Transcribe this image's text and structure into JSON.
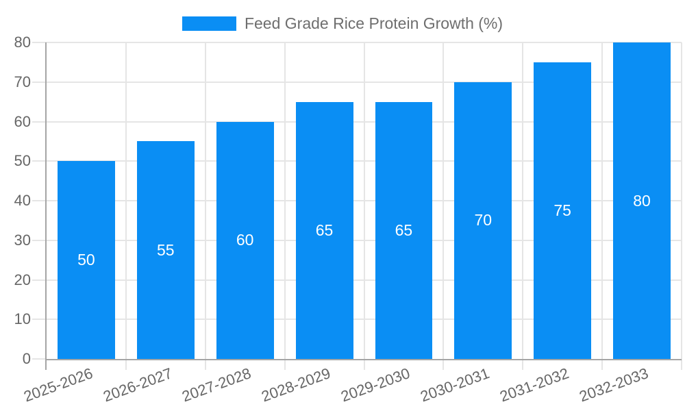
{
  "chart_data": {
    "type": "bar",
    "title": "Feed Grade Rice Protein Growth (%)",
    "legend_position": "top",
    "legend_entries": [
      "Feed Grade Rice Protein Growth (%)"
    ],
    "categories": [
      "2025-2026",
      "2026-2027",
      "2027-2028",
      "2028-2029",
      "2029-2030",
      "2030-2031",
      "2031-2032",
      "2032-2033"
    ],
    "values": [
      50,
      55,
      60,
      65,
      65,
      70,
      75,
      80
    ],
    "value_labels": [
      "50",
      "55",
      "60",
      "65",
      "65",
      "70",
      "75",
      "80"
    ],
    "value_labels_inside_bars": true,
    "xlabel": "",
    "ylabel": "",
    "ylim": [
      0,
      80
    ],
    "yticks": [
      0,
      10,
      20,
      30,
      40,
      50,
      60,
      70,
      80
    ],
    "grid": true,
    "x_tick_rotation_deg": -20,
    "bar_color": "#0a8ef4",
    "value_label_color": "#ffffff",
    "axis_text_color": "#666666",
    "legend_text_color": "#6e6e6e"
  }
}
